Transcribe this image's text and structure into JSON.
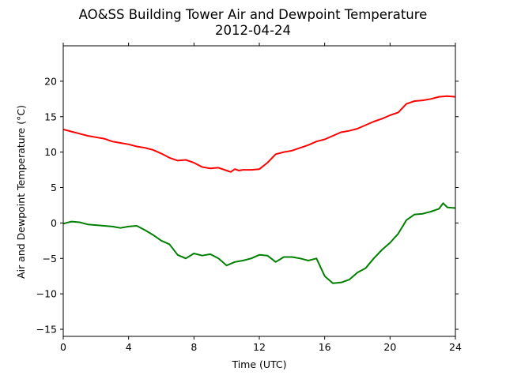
{
  "chart_data": {
    "type": "line",
    "title": "AO&SS Building Tower Air and Dewpoint Temperature",
    "subtitle": "2012-04-24",
    "xlabel": "Time (UTC)",
    "ylabel": "Air and Dewpoint Temperature (°C)",
    "xlim": [
      0,
      24
    ],
    "ylim": [
      -16,
      25
    ],
    "xticks": [
      0,
      4,
      8,
      12,
      16,
      20,
      24
    ],
    "yticks": [
      -15,
      -10,
      -5,
      0,
      5,
      10,
      15,
      20
    ],
    "grid": false,
    "series": [
      {
        "color": "#ff0000",
        "x": [
          0,
          0.5,
          1,
          1.5,
          2,
          2.5,
          3,
          3.5,
          4,
          4.5,
          5,
          5.5,
          6,
          6.5,
          7,
          7.5,
          8,
          8.5,
          9,
          9.5,
          10,
          10.25,
          10.5,
          10.75,
          11,
          11.5,
          12,
          12.5,
          13,
          13.5,
          14,
          14.5,
          15,
          15.5,
          16,
          16.5,
          17,
          17.5,
          18,
          18.5,
          19,
          19.5,
          20,
          20.5,
          21,
          21.5,
          22,
          22.5,
          23,
          23.5,
          24
        ],
        "y": [
          13.2,
          12.9,
          12.6,
          12.3,
          12.1,
          11.9,
          11.5,
          11.3,
          11.1,
          10.8,
          10.6,
          10.3,
          9.8,
          9.2,
          8.8,
          8.9,
          8.5,
          7.9,
          7.7,
          7.8,
          7.4,
          7.2,
          7.6,
          7.4,
          7.5,
          7.5,
          7.6,
          8.5,
          9.7,
          10.0,
          10.2,
          10.6,
          11.0,
          11.5,
          11.8,
          12.3,
          12.8,
          13.0,
          13.3,
          13.8,
          14.3,
          14.7,
          15.2,
          15.6,
          16.8,
          17.2,
          17.3,
          17.5,
          17.8,
          17.9,
          17.8
        ]
      },
      {
        "color": "#008000",
        "x": [
          0,
          0.5,
          1,
          1.5,
          2,
          2.5,
          3,
          3.5,
          4,
          4.5,
          5,
          5.5,
          6,
          6.5,
          7,
          7.5,
          8,
          8.5,
          9,
          9.5,
          10,
          10.5,
          11,
          11.5,
          12,
          12.5,
          13,
          13.5,
          14,
          14.5,
          15,
          15.5,
          16,
          16.5,
          17,
          17.5,
          18,
          18.5,
          19,
          19.5,
          20,
          20.5,
          21,
          21.5,
          22,
          22.5,
          23,
          23.25,
          23.5,
          24
        ],
        "y": [
          -0.1,
          0.2,
          0.1,
          -0.2,
          -0.3,
          -0.4,
          -0.5,
          -0.7,
          -0.5,
          -0.4,
          -1.0,
          -1.7,
          -2.5,
          -3.0,
          -4.5,
          -5.0,
          -4.3,
          -4.6,
          -4.4,
          -5.0,
          -6.0,
          -5.5,
          -5.3,
          -5.0,
          -4.5,
          -4.6,
          -5.5,
          -4.8,
          -4.8,
          -5.0,
          -5.3,
          -5.0,
          -7.5,
          -8.5,
          -8.4,
          -8.0,
          -7.0,
          -6.4,
          -5.0,
          -3.8,
          -2.8,
          -1.5,
          0.4,
          1.2,
          1.3,
          1.6,
          2.0,
          2.8,
          2.2,
          2.1
        ]
      }
    ]
  }
}
